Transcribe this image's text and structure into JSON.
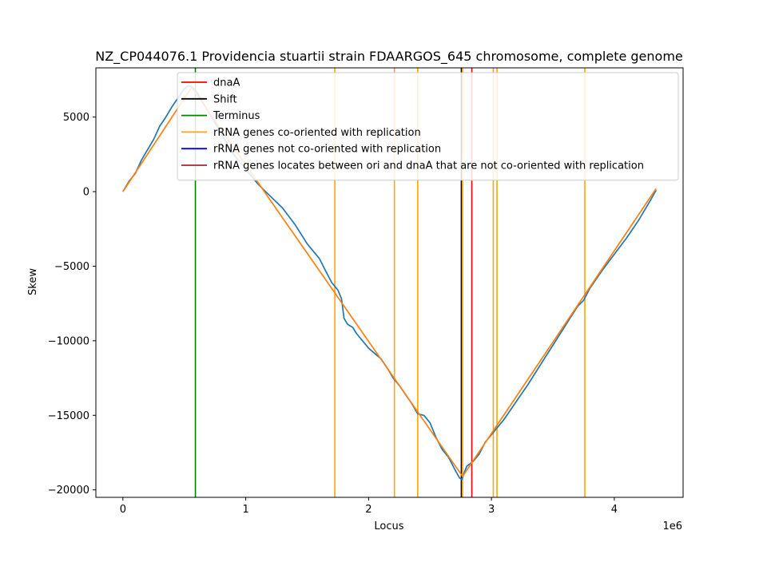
{
  "chart_data": {
    "type": "line",
    "title": "NZ_CP044076.1 Providencia stuartii strain FDAARGOS_645 chromosome, complete genome",
    "xlabel": "Locus",
    "ylabel": "Skew",
    "x_offset_label": "1e6",
    "xlim": [
      -220000,
      4560000
    ],
    "ylim": [
      -20500,
      8300
    ],
    "x_ticks": [
      0,
      1000000,
      2000000,
      3000000,
      4000000
    ],
    "x_tick_labels": [
      "0",
      "1",
      "2",
      "3",
      "4"
    ],
    "y_ticks": [
      5000,
      0,
      -5000,
      -10000,
      -15000,
      -20000
    ],
    "y_tick_labels": [
      "5000",
      "0",
      "−5000",
      "−10000",
      "−15000",
      "−20000"
    ],
    "legend_position": "top-right",
    "vertical_lines": [
      {
        "name": "dnaA",
        "x": 2840000,
        "color": "#ff0000"
      },
      {
        "name": "Shift",
        "x": 2755000,
        "color": "#000000"
      },
      {
        "name": "Terminus",
        "x": 590000,
        "color": "#008000"
      },
      {
        "name": "rRNA genes co-oriented with replication",
        "x": [
          1725000,
          2210000,
          2400000,
          2765000,
          3015000,
          3045000,
          3760000
        ],
        "color": "#ffa500"
      },
      {
        "name": "rRNA genes not co-oriented with replication",
        "x": [],
        "color": "#0000ff"
      },
      {
        "name": "rRNA genes locates between ori and dnaA that are not co-oriented with replication",
        "x": [],
        "color": "#a52a2a"
      }
    ],
    "series": [
      {
        "color": "#1f77b4",
        "x": [
          0,
          50000,
          100000,
          150000,
          200000,
          250000,
          300000,
          350000,
          400000,
          450000,
          500000,
          530000,
          560000,
          600000,
          650000,
          700000,
          800000,
          900000,
          1000000,
          1100000,
          1200000,
          1300000,
          1400000,
          1500000,
          1600000,
          1650000,
          1700000,
          1750000,
          1780000,
          1800000,
          1830000,
          1870000,
          1900000,
          2000000,
          2100000,
          2150000,
          2200000,
          2250000,
          2300000,
          2350000,
          2400000,
          2450000,
          2500000,
          2550000,
          2600000,
          2650000,
          2700000,
          2740000,
          2760000,
          2780000,
          2800000,
          2850000,
          2900000,
          2950000,
          3000000,
          3050000,
          3100000,
          3200000,
          3300000,
          3400000,
          3500000,
          3600000,
          3700000,
          3750000,
          3800000,
          3900000,
          4000000,
          4100000,
          4200000,
          4300000,
          4340000
        ],
        "y": [
          0,
          700,
          1200,
          2100,
          2800,
          3500,
          4400,
          5000,
          5700,
          6300,
          6900,
          7100,
          7050,
          6700,
          6000,
          5300,
          3900,
          2500,
          1500,
          500,
          -300,
          -1100,
          -2200,
          -3500,
          -4500,
          -5300,
          -6100,
          -6600,
          -7200,
          -8500,
          -8900,
          -9100,
          -9500,
          -10500,
          -11200,
          -11800,
          -12500,
          -13000,
          -13600,
          -14200,
          -14900,
          -15000,
          -15500,
          -16500,
          -17300,
          -17800,
          -18600,
          -19200,
          -19300,
          -18800,
          -18400,
          -18100,
          -17600,
          -16800,
          -16300,
          -15800,
          -15300,
          -14100,
          -12900,
          -11600,
          -10300,
          -9000,
          -7700,
          -7300,
          -6500,
          -5300,
          -4200,
          -3100,
          -1900,
          -500,
          100
        ]
      },
      {
        "color": "#ff7f0e",
        "x": [
          0,
          560000,
          2765000,
          4340000
        ],
        "y": [
          0,
          7000,
          -19100,
          200
        ]
      }
    ]
  }
}
